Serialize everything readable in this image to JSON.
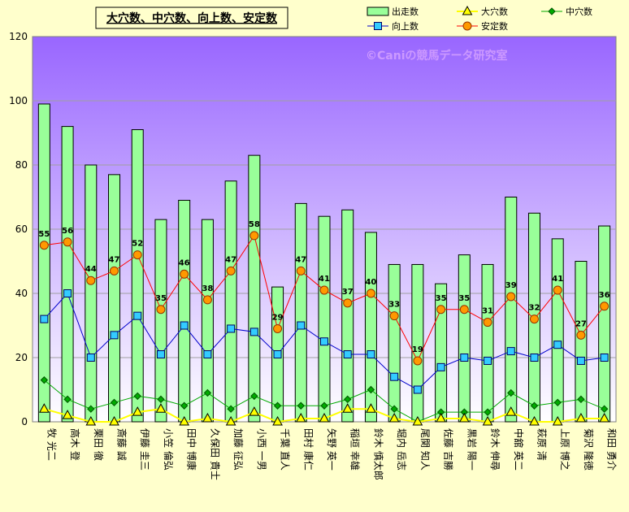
{
  "title": "大穴数、中穴数、向上数、安定数",
  "watermark": "©Caniの競馬データ研究室",
  "legend": {
    "position": "top-right",
    "items": [
      {
        "key": "starts",
        "label": "出走数"
      },
      {
        "key": "big",
        "label": "大穴数"
      },
      {
        "key": "mid",
        "label": "中穴数"
      },
      {
        "key": "up",
        "label": "向上数"
      },
      {
        "key": "stable",
        "label": "安定数"
      }
    ]
  },
  "colors": {
    "background": "#ffffcc",
    "plot_top": "#9966ff",
    "plot_bottom": "#ffffff",
    "bar_fill": "#99ff99",
    "bar_border": "#000000",
    "big": "#ffff00",
    "mid": "#00aa00",
    "up": "#0000cc",
    "up_marker": "#33ccff",
    "stable": "#ff0000",
    "stable_marker": "#ff9900",
    "title_box": "#ffffcc"
  },
  "chart_data": {
    "type": "bar",
    "ylim": [
      0,
      120
    ],
    "yticks": [
      0,
      20,
      40,
      60,
      80,
      100,
      120
    ],
    "grid": true,
    "categories": [
      "牧 光二",
      "高木 登",
      "栗田 徹",
      "斎藤 誠",
      "伊藤 圭三",
      "小笠 倫弘",
      "田中 博康",
      "久保田 貴士",
      "加藤 征弘",
      "小西 一男",
      "千葉 直人",
      "田村 康仁",
      "矢野 英一",
      "稲垣 幸雄",
      "鈴木 慎太郎",
      "堀内 岳志",
      "尾関 知人",
      "佐藤 吉勝",
      "黒岩 陽一",
      "鈴木 伸尋",
      "中舘 英二",
      "萩原 清",
      "上原 博之",
      "菊沢 隆徳",
      "和田 勇介"
    ],
    "series": [
      {
        "key": "starts",
        "name": "出走数",
        "type": "bar",
        "values": [
          99,
          92,
          80,
          77,
          91,
          63,
          69,
          63,
          75,
          83,
          42,
          68,
          64,
          66,
          59,
          49,
          49,
          43,
          52,
          49,
          70,
          65,
          57,
          50,
          61
        ]
      },
      {
        "key": "big",
        "name": "大穴数",
        "type": "line",
        "values": [
          4,
          2,
          0,
          0,
          3,
          4,
          0,
          1,
          0,
          3,
          0,
          1,
          1,
          4,
          4,
          1,
          0,
          1,
          1,
          0,
          3,
          0,
          0,
          1,
          1
        ]
      },
      {
        "key": "mid",
        "name": "中穴数",
        "type": "line",
        "values": [
          13,
          7,
          4,
          6,
          8,
          7,
          5,
          9,
          4,
          8,
          5,
          5,
          5,
          7,
          10,
          4,
          0,
          3,
          3,
          3,
          9,
          5,
          6,
          7,
          4
        ]
      },
      {
        "key": "up",
        "name": "向上数",
        "type": "line",
        "values": [
          32,
          40,
          20,
          27,
          33,
          21,
          30,
          21,
          29,
          28,
          21,
          30,
          25,
          21,
          21,
          14,
          10,
          17,
          20,
          19,
          22,
          20,
          24,
          19,
          20
        ]
      },
      {
        "key": "stable",
        "name": "安定数",
        "type": "line",
        "data_labels": true,
        "values": [
          55,
          56,
          44,
          47,
          52,
          35,
          46,
          38,
          47,
          58,
          29,
          47,
          41,
          37,
          40,
          33,
          19,
          35,
          35,
          31,
          39,
          32,
          41,
          27,
          36
        ]
      }
    ]
  }
}
